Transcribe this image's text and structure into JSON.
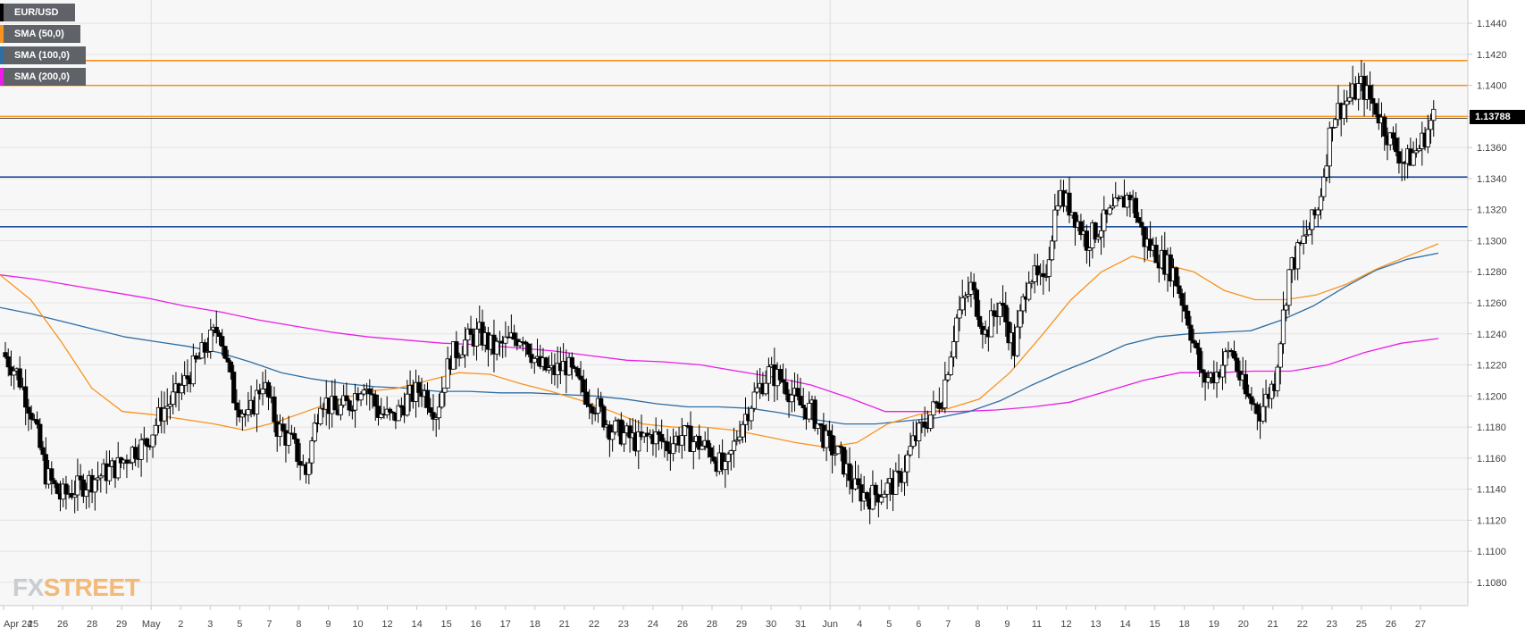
{
  "chart_data": {
    "type": "candlestick",
    "symbol": "EUR/USD",
    "legend": [
      {
        "label": "EUR/USD",
        "color": "#000000"
      },
      {
        "label": "SMA (50,0)",
        "color": "#f7931e"
      },
      {
        "label": "SMA (100,0)",
        "color": "#2e6da4"
      },
      {
        "label": "SMA (200,0)",
        "color": "#e91ee6"
      }
    ],
    "ylim": [
      1.1065,
      1.1455
    ],
    "y_ticks": [
      "1.1440",
      "1.1420",
      "1.1400",
      "1.1380",
      "1.1360",
      "1.1340",
      "1.1320",
      "1.1300",
      "1.1280",
      "1.1260",
      "1.1240",
      "1.1220",
      "1.1200",
      "1.1180",
      "1.1160",
      "1.1140",
      "1.1120",
      "1.1100",
      "1.1080"
    ],
    "x_ticks": [
      "Apr 24",
      "25",
      "26",
      "28",
      "29",
      "May",
      "2",
      "3",
      "5",
      "7",
      "8",
      "9",
      "10",
      "12",
      "14",
      "15",
      "16",
      "17",
      "18",
      "21",
      "22",
      "23",
      "24",
      "26",
      "28",
      "29",
      "30",
      "31",
      "Jun",
      "4",
      "5",
      "6",
      "7",
      "8",
      "9",
      "11",
      "12",
      "13",
      "14",
      "15",
      "18",
      "19",
      "20",
      "21",
      "22",
      "23",
      "25",
      "26",
      "27"
    ],
    "current_price": "1.13788",
    "horizontal_levels": [
      {
        "value": 1.1416,
        "color": "#f7931e"
      },
      {
        "value": 1.14,
        "color": "#f7931e"
      },
      {
        "value": 1.138,
        "color": "#f7931e"
      },
      {
        "value": 1.1341,
        "color": "#1f4e9a"
      },
      {
        "value": 1.1309,
        "color": "#1f4e9a"
      }
    ],
    "sma_50": [
      1.1278,
      1.1262,
      1.1235,
      1.1205,
      1.119,
      1.1188,
      1.1185,
      1.1182,
      1.1178,
      1.1183,
      1.119,
      1.1197,
      1.1203,
      1.1205,
      1.121,
      1.1215,
      1.1214,
      1.1208,
      1.1203,
      1.1197,
      1.119,
      1.1182,
      1.118,
      1.118,
      1.1178,
      1.1174,
      1.117,
      1.1167,
      1.117,
      1.1182,
      1.1188,
      1.1192,
      1.1198,
      1.1215,
      1.1238,
      1.1262,
      1.128,
      1.129,
      1.1285,
      1.128,
      1.1268,
      1.1262,
      1.1262,
      1.1265,
      1.1272,
      1.1282,
      1.129,
      1.1298
    ],
    "sma_100": [
      1.1257,
      1.1253,
      1.1248,
      1.1243,
      1.1238,
      1.1235,
      1.1232,
      1.1228,
      1.1222,
      1.1215,
      1.1211,
      1.1208,
      1.1206,
      1.1205,
      1.1203,
      1.1203,
      1.1202,
      1.1202,
      1.1201,
      1.12,
      1.1198,
      1.1195,
      1.1193,
      1.1193,
      1.1192,
      1.1189,
      1.1185,
      1.1182,
      1.1182,
      1.1184,
      1.1186,
      1.119,
      1.1197,
      1.1207,
      1.1216,
      1.1224,
      1.1233,
      1.1238,
      1.124,
      1.1241,
      1.1242,
      1.1249,
      1.1258,
      1.127,
      1.1281,
      1.1288,
      1.1292
    ],
    "sma_200": [
      1.1278,
      1.1275,
      1.1271,
      1.1267,
      1.1263,
      1.1258,
      1.1254,
      1.1249,
      1.1245,
      1.1241,
      1.1238,
      1.1236,
      1.1234,
      1.1233,
      1.1231,
      1.1229,
      1.1226,
      1.1223,
      1.1222,
      1.122,
      1.1216,
      1.1212,
      1.1207,
      1.1199,
      1.119,
      1.119,
      1.119,
      1.1191,
      1.1193,
      1.1196,
      1.1203,
      1.121,
      1.1215,
      1.1215,
      1.1216,
      1.1216,
      1.122,
      1.1228,
      1.1234,
      1.1237
    ],
    "close_path": [
      1.1228,
      1.1215,
      1.119,
      1.115,
      1.1135,
      1.114,
      1.1145,
      1.115,
      1.1155,
      1.1165,
      1.117,
      1.119,
      1.12,
      1.1215,
      1.123,
      1.1245,
      1.12,
      1.1185,
      1.121,
      1.118,
      1.117,
      1.115,
      1.12,
      1.119,
      1.1195,
      1.121,
      1.119,
      1.1185,
      1.1198,
      1.1205,
      1.119,
      1.1225,
      1.1235,
      1.124,
      1.123,
      1.1235,
      1.124,
      1.122,
      1.1215,
      1.122,
      1.1205,
      1.1195,
      1.118,
      1.1175,
      1.117,
      1.1175,
      1.1168,
      1.1175,
      1.117,
      1.1165,
      1.115,
      1.118,
      1.12,
      1.1215,
      1.121,
      1.1195,
      1.119,
      1.117,
      1.116,
      1.114,
      1.1135,
      1.114,
      1.1145,
      1.117,
      1.1185,
      1.12,
      1.125,
      1.127,
      1.124,
      1.126,
      1.123,
      1.128,
      1.127,
      1.133,
      1.132,
      1.13,
      1.131,
      1.132,
      1.133,
      1.13,
      1.129,
      1.128,
      1.125,
      1.121,
      1.1215,
      1.123,
      1.12,
      1.119,
      1.121,
      1.128,
      1.13,
      1.132,
      1.138,
      1.139,
      1.14,
      1.1385,
      1.1365,
      1.135,
      1.136,
      1.138
    ]
  }
}
